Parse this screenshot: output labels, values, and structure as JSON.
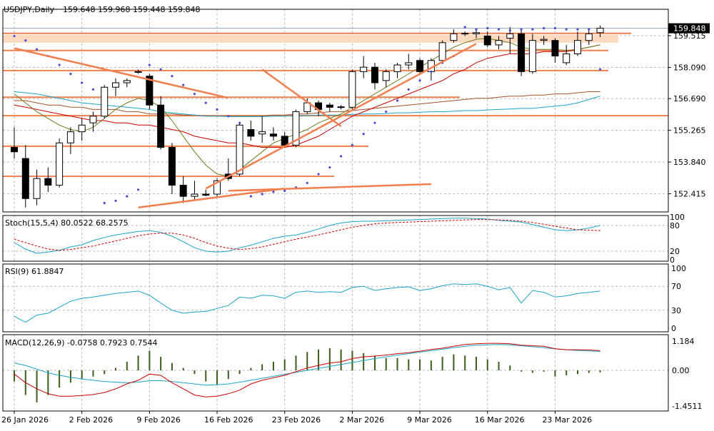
{
  "header": {
    "symbol_tf": "USDJPY,Daily",
    "ohlc": "159.648 159.968 159.448 159.848"
  },
  "colors": {
    "bull_body": "#ffffff",
    "bear_body": "#000000",
    "ma_fast": "#6b7a1e",
    "ma_mid": "#cc0000",
    "ma_slow": "#a0522d",
    "ma_cyan": "#1ba3c6",
    "psar": "#4a4ad0",
    "sr_band": "#fcd9bf",
    "sr_line": "#f07f4f",
    "grid": "#b8b8b8",
    "macd_hist": "#3b5e1b",
    "stoch_main": "#1ba3c6",
    "stoch_signal": "#cc0000",
    "rsi": "#1ba3c6"
  },
  "chart_data": [
    {
      "type": "candlestick",
      "title": "USDJPY,Daily",
      "last_price_label": "159.848",
      "ylim": [
        151.6,
        160.7
      ],
      "y_ticks": [
        159.515,
        158.09,
        156.69,
        155.265,
        153.84,
        152.415
      ],
      "y_tick_labels": [
        "159.515",
        "158.090",
        "156.690",
        "155.265",
        "153.840",
        "152.415"
      ],
      "x_tick_labels": [
        "26 Jan 2026",
        "2 Feb 2026",
        "9 Feb 2026",
        "16 Feb 2026",
        "23 Feb 2026",
        "2 Mar 2026",
        "9 Mar 2026",
        "16 Mar 2026",
        "23 Mar 2026"
      ],
      "x_tick_index": [
        0,
        6,
        12,
        18,
        24,
        30,
        36,
        42,
        48
      ],
      "grid": true,
      "candles": [
        [
          154.5,
          155.4,
          154.0,
          154.3
        ],
        [
          154.0,
          154.6,
          151.8,
          152.2
        ],
        [
          152.2,
          153.5,
          151.9,
          153.1
        ],
        [
          153.1,
          153.6,
          152.5,
          152.8
        ],
        [
          152.8,
          154.9,
          152.7,
          154.7
        ],
        [
          154.7,
          155.4,
          154.2,
          155.2
        ],
        [
          155.2,
          155.8,
          154.8,
          155.5
        ],
        [
          155.6,
          156.1,
          155.2,
          155.9
        ],
        [
          155.9,
          157.3,
          155.8,
          157.2
        ],
        [
          157.2,
          157.6,
          156.8,
          157.4
        ],
        [
          157.4,
          157.6,
          157.2,
          157.5
        ],
        [
          157.9,
          158.0,
          157.8,
          157.9
        ],
        [
          157.7,
          157.8,
          156.2,
          156.4
        ],
        [
          156.4,
          156.8,
          154.4,
          154.5
        ],
        [
          154.5,
          154.7,
          152.4,
          152.8
        ],
        [
          152.8,
          153.2,
          152.0,
          152.3
        ],
        [
          152.3,
          153.0,
          152.1,
          152.4
        ],
        [
          152.4,
          152.6,
          152.3,
          152.35
        ],
        [
          152.4,
          153.1,
          152.3,
          153.0
        ],
        [
          153.3,
          154.0,
          153.0,
          153.1
        ],
        [
          153.3,
          155.6,
          153.2,
          155.5
        ],
        [
          155.3,
          155.7,
          154.8,
          155.0
        ],
        [
          155.1,
          155.9,
          154.7,
          155.2
        ],
        [
          155.1,
          155.4,
          154.8,
          155.0
        ],
        [
          155.0,
          155.2,
          154.5,
          154.6
        ],
        [
          154.6,
          156.2,
          154.5,
          156.1
        ],
        [
          156.1,
          156.7,
          156.0,
          156.5
        ],
        [
          156.5,
          156.6,
          155.9,
          156.2
        ],
        [
          156.4,
          156.5,
          156.1,
          156.3
        ],
        [
          156.3,
          156.4,
          156.2,
          156.32
        ],
        [
          156.3,
          158.0,
          156.2,
          157.9
        ],
        [
          157.9,
          158.6,
          157.6,
          158.1
        ],
        [
          158.1,
          158.3,
          157.1,
          157.4
        ],
        [
          157.5,
          158.0,
          157.2,
          157.9
        ],
        [
          157.9,
          158.3,
          157.6,
          158.2
        ],
        [
          158.2,
          158.7,
          158.0,
          158.3
        ],
        [
          158.4,
          158.5,
          157.8,
          157.9
        ],
        [
          157.9,
          158.5,
          157.5,
          158.4
        ],
        [
          158.4,
          159.3,
          158.3,
          159.2
        ],
        [
          159.3,
          159.8,
          159.2,
          159.6
        ],
        [
          159.6,
          159.7,
          159.5,
          159.62
        ],
        [
          159.6,
          159.8,
          159.4,
          159.65
        ],
        [
          159.5,
          159.7,
          159.0,
          159.1
        ],
        [
          159.1,
          159.5,
          158.9,
          159.3
        ],
        [
          159.4,
          159.9,
          158.7,
          159.6
        ],
        [
          159.6,
          159.8,
          157.7,
          157.9
        ],
        [
          157.9,
          159.6,
          157.8,
          159.3
        ],
        [
          159.3,
          159.5,
          159.1,
          159.35
        ],
        [
          159.3,
          159.4,
          158.3,
          158.6
        ],
        [
          158.3,
          159.1,
          158.2,
          158.7
        ],
        [
          158.7,
          159.7,
          158.6,
          159.3
        ],
        [
          159.3,
          159.8,
          159.1,
          159.6
        ],
        [
          159.65,
          159.97,
          159.45,
          159.85
        ]
      ],
      "overlays": {
        "ma_fast": [
          156.9,
          156.5,
          156.1,
          155.8,
          155.5,
          155.3,
          155.2,
          155.4,
          155.8,
          156.2,
          156.5,
          156.7,
          156.6,
          156.3,
          155.7,
          155.0,
          154.3,
          153.7,
          153.3,
          153.2,
          153.5,
          153.9,
          154.3,
          154.7,
          154.9,
          155.1,
          155.3,
          155.6,
          155.8,
          156.0,
          156.3,
          156.6,
          156.9,
          157.2,
          157.5,
          157.8,
          158.1,
          158.4,
          158.7,
          159.0,
          159.2,
          159.35,
          159.4,
          159.3,
          159.2,
          159.0,
          158.9,
          158.9,
          158.9,
          158.85,
          158.9,
          159.0,
          159.1
        ],
        "ma_mid": [
          156.4,
          156.3,
          156.2,
          156.1,
          156.0,
          155.9,
          155.8,
          155.7,
          155.7,
          155.6,
          155.6,
          155.5,
          155.5,
          155.4,
          155.3,
          155.2,
          155.0,
          154.9,
          154.8,
          154.7,
          154.7,
          154.6,
          154.5,
          154.5,
          154.5,
          154.6,
          154.8,
          155.0,
          155.3,
          155.6,
          155.9,
          156.1,
          156.3,
          156.5,
          156.7,
          156.9,
          157.1,
          157.3,
          157.5,
          157.8,
          158.0,
          158.3,
          158.5,
          158.6,
          158.7,
          158.7,
          158.7,
          158.8,
          158.8,
          158.8,
          158.9,
          159.0,
          159.1
        ],
        "ma_slow": [
          156.6,
          156.6,
          156.5,
          156.4,
          156.4,
          156.3,
          156.3,
          156.2,
          156.2,
          156.2,
          156.1,
          156.1,
          156.0,
          156.0,
          156.0,
          155.95,
          155.95,
          155.9,
          155.9,
          155.9,
          155.9,
          155.9,
          155.9,
          155.95,
          155.95,
          156.0,
          156.0,
          156.05,
          156.1,
          156.1,
          156.15,
          156.2,
          156.25,
          156.3,
          156.35,
          156.4,
          156.45,
          156.5,
          156.55,
          156.6,
          156.65,
          156.7,
          156.7,
          156.75,
          156.8,
          156.8,
          156.85,
          156.85,
          156.9,
          156.9,
          156.95,
          157.0,
          157.0
        ],
        "ma_cyan": [
          157.0,
          156.95,
          156.9,
          156.8,
          156.7,
          156.6,
          156.5,
          156.45,
          156.4,
          156.35,
          156.3,
          156.25,
          156.2,
          156.1,
          156.05,
          156.0,
          155.95,
          155.9,
          155.9,
          155.88,
          155.88,
          155.88,
          155.88,
          155.9,
          155.9,
          155.92,
          155.92,
          155.95,
          155.95,
          155.95,
          155.98,
          156.0,
          156.0,
          156.02,
          156.05,
          156.05,
          156.08,
          156.1,
          156.1,
          156.12,
          156.15,
          156.15,
          156.18,
          156.2,
          156.22,
          156.25,
          156.25,
          156.3,
          156.35,
          156.4,
          156.5,
          156.65,
          156.8
        ],
        "psar": [
          159.5,
          159.3,
          158.9,
          158.6,
          158.2,
          157.8,
          157.4,
          157.1,
          152.0,
          152.1,
          152.3,
          152.6,
          158.2,
          158.0,
          157.7,
          157.3,
          156.9,
          156.5,
          156.2,
          155.9,
          155.6,
          152.3,
          152.4,
          152.5,
          152.55,
          152.7,
          152.9,
          153.3,
          153.6,
          154.1,
          154.6,
          155.1,
          155.6,
          156.1,
          156.6,
          157.1,
          157.5,
          157.9,
          158.3,
          158.6,
          159.9,
          159.8,
          159.85,
          159.8,
          159.75,
          159.8,
          159.8,
          159.85,
          159.85,
          159.8,
          159.8,
          159.8,
          158.0
        ]
      },
      "horizontal_levels": [
        159.62,
        158.85,
        157.95,
        156.75,
        155.92,
        154.55,
        153.2
      ],
      "zone": [
        159.2,
        159.55
      ],
      "trendlines": [
        [
          0,
          158.95,
          19,
          156.72
        ],
        [
          22,
          158.0,
          29,
          155.45
        ],
        [
          17,
          152.65,
          41,
          159.15
        ],
        [
          19,
          152.55,
          37,
          152.85
        ],
        [
          11,
          151.8,
          24,
          152.65
        ]
      ]
    },
    {
      "type": "line",
      "title": "Stoch(15,5,4) 80.0522 68.2575",
      "ylim": [
        0,
        100
      ],
      "y_tick_labels": [
        "100",
        "80",
        "20",
        "0"
      ],
      "y_ticks": [
        100,
        80,
        20,
        0
      ],
      "series": [
        {
          "name": "main",
          "values": [
            40,
            25,
            15,
            18,
            22,
            30,
            35,
            45,
            52,
            58,
            62,
            66,
            68,
            64,
            55,
            42,
            28,
            20,
            18,
            20,
            28,
            34,
            42,
            50,
            55,
            58,
            64,
            72,
            80,
            86,
            89,
            90,
            90,
            91,
            92,
            93,
            94,
            95,
            96,
            97,
            97,
            96,
            95,
            92,
            90,
            88,
            82,
            76,
            70,
            68,
            70,
            74,
            80
          ]
        },
        {
          "name": "signal",
          "values": [
            48,
            40,
            32,
            25,
            22,
            24,
            28,
            32,
            38,
            44,
            50,
            56,
            60,
            62,
            62,
            58,
            50,
            40,
            32,
            27,
            24,
            26,
            30,
            36,
            42,
            48,
            53,
            58,
            64,
            70,
            76,
            80,
            84,
            86,
            87,
            88,
            89,
            90,
            91,
            92,
            93,
            94,
            94,
            93,
            92,
            90,
            87,
            83,
            78,
            74,
            70,
            69,
            68
          ]
        }
      ]
    },
    {
      "type": "line",
      "title": "RSI(9) 61.8847",
      "ylim": [
        0,
        100
      ],
      "y_ticks": [
        100,
        70,
        30,
        0
      ],
      "y_tick_labels": [
        "100",
        "70",
        "30",
        "0"
      ],
      "series": [
        {
          "name": "RSI",
          "values": [
            20,
            10,
            22,
            25,
            35,
            45,
            50,
            52,
            55,
            58,
            60,
            62,
            55,
            42,
            30,
            25,
            27,
            28,
            33,
            38,
            52,
            50,
            55,
            54,
            50,
            60,
            62,
            60,
            61,
            60,
            68,
            70,
            63,
            66,
            68,
            69,
            63,
            66,
            71,
            74,
            73,
            74,
            70,
            64,
            68,
            42,
            63,
            60,
            52,
            54,
            58,
            60,
            62
          ]
        }
      ]
    },
    {
      "type": "bar",
      "title": "MACD(12,26,9) -0.0758 0.7923 0.7544",
      "ylim": [
        -1.65,
        1.45
      ],
      "y_ticks": [
        1.184,
        0,
        -1.4511
      ],
      "y_tick_labels": [
        "1.184",
        "0.00",
        "-1.4511"
      ],
      "series": [
        {
          "name": "histogram",
          "values": [
            -0.45,
            -1.0,
            -1.3,
            -1.0,
            -0.7,
            -0.5,
            -0.35,
            -0.25,
            -0.15,
            0.1,
            0.35,
            0.6,
            0.8,
            0.55,
            0.3,
            0.1,
            -0.15,
            -0.45,
            -0.6,
            -0.35,
            -0.15,
            0.1,
            0.25,
            0.35,
            0.45,
            0.6,
            0.75,
            0.85,
            0.9,
            0.85,
            0.8,
            0.7,
            0.6,
            0.5,
            0.5,
            0.45,
            0.45,
            0.4,
            0.55,
            0.65,
            0.6,
            0.55,
            0.45,
            0.35,
            0.2,
            -0.05,
            -0.1,
            -0.05,
            -0.25,
            -0.2,
            -0.15,
            -0.1,
            -0.08
          ]
        },
        {
          "name": "signal",
          "values": [
            0.3,
            0.2,
            0.05,
            -0.1,
            -0.2,
            -0.28,
            -0.35,
            -0.4,
            -0.45,
            -0.48,
            -0.5,
            -0.48,
            -0.42,
            -0.42,
            -0.45,
            -0.5,
            -0.55,
            -0.6,
            -0.58,
            -0.55,
            -0.48,
            -0.4,
            -0.32,
            -0.24,
            -0.16,
            -0.08,
            0.0,
            0.08,
            0.16,
            0.24,
            0.32,
            0.4,
            0.48,
            0.55,
            0.62,
            0.68,
            0.74,
            0.8,
            0.86,
            0.92,
            0.98,
            1.02,
            1.04,
            1.05,
            1.04,
            1.0,
            0.96,
            0.92,
            0.88,
            0.84,
            0.81,
            0.79,
            0.77
          ]
        },
        {
          "name": "main",
          "values": [
            -0.15,
            -0.5,
            -0.75,
            -0.95,
            -1.05,
            -1.05,
            -1.02,
            -0.98,
            -0.9,
            -0.75,
            -0.55,
            -0.4,
            -0.15,
            -0.2,
            -0.5,
            -0.75,
            -1.0,
            -1.08,
            -1.05,
            -0.95,
            -0.8,
            -0.55,
            -0.4,
            -0.3,
            -0.2,
            -0.05,
            0.1,
            0.2,
            0.3,
            0.35,
            0.48,
            0.55,
            0.58,
            0.62,
            0.68,
            0.72,
            0.78,
            0.85,
            0.9,
            0.98,
            1.05,
            1.08,
            1.1,
            1.1,
            1.08,
            1.02,
            1.0,
            0.98,
            0.88,
            0.84,
            0.84,
            0.83,
            0.8
          ]
        }
      ]
    }
  ]
}
